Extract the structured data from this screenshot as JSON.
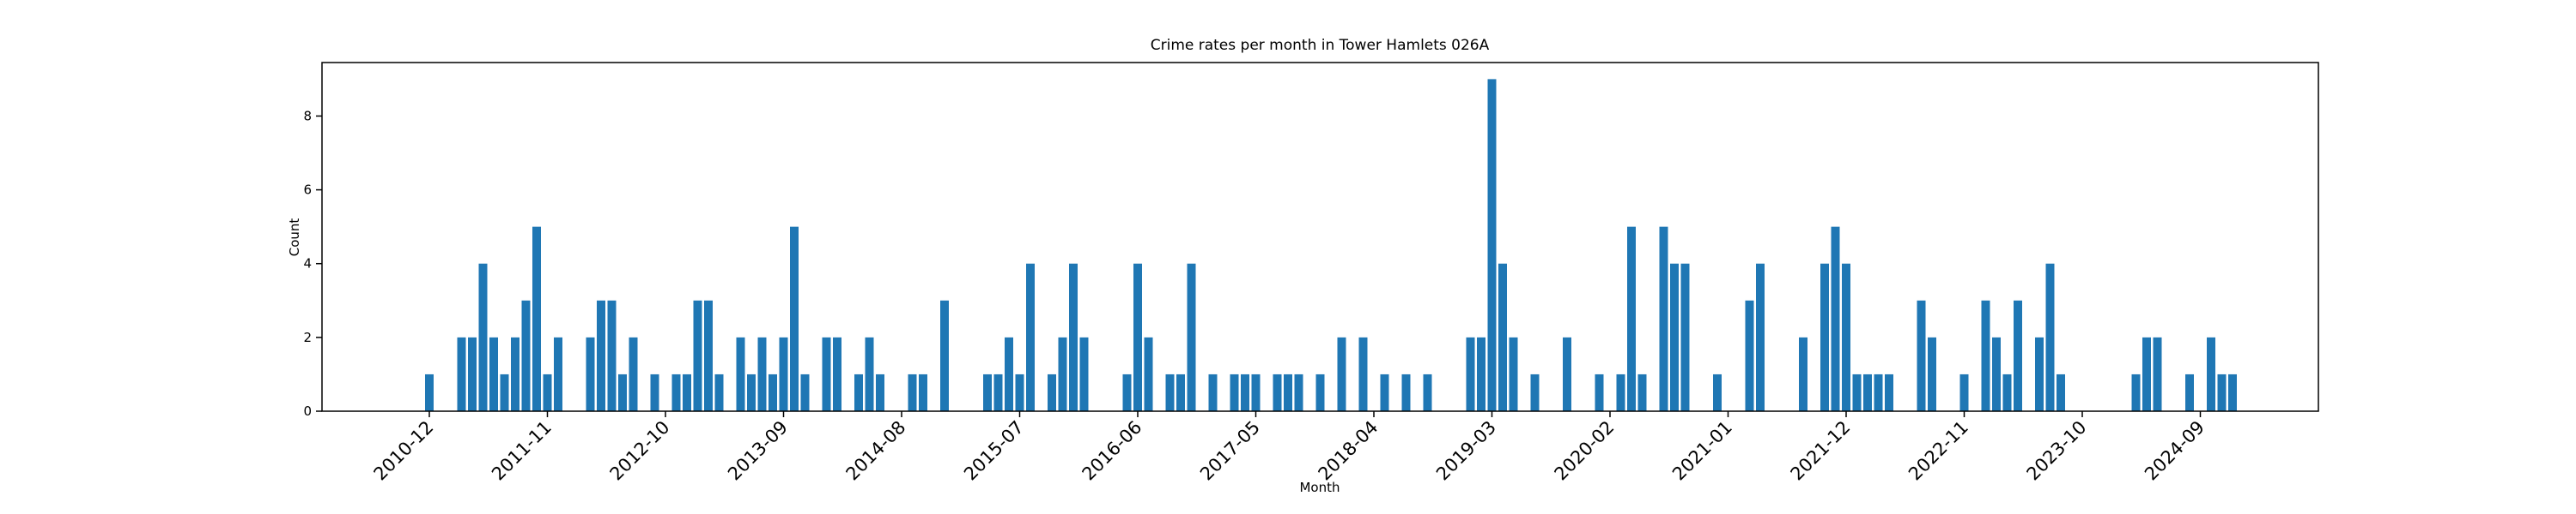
{
  "chart_data": {
    "type": "bar",
    "title": "Crime rates per month in Tower Hamlets 026A",
    "x_label": "Month",
    "y_label": "Count",
    "color": "#1f77b4",
    "x": [
      "2010-12",
      "2011-03",
      "2011-04",
      "2011-05",
      "2011-06",
      "2011-07",
      "2011-08",
      "2011-09",
      "2011-10",
      "2011-11",
      "2011-12",
      "2012-03",
      "2012-04",
      "2012-05",
      "2012-06",
      "2012-07",
      "2012-09",
      "2012-11",
      "2012-12",
      "2013-01",
      "2013-02",
      "2013-03",
      "2013-05",
      "2013-06",
      "2013-07",
      "2013-08",
      "2013-09",
      "2013-10",
      "2013-11",
      "2014-01",
      "2014-02",
      "2014-04",
      "2014-05",
      "2014-06",
      "2014-09",
      "2014-10",
      "2014-12",
      "2015-04",
      "2015-05",
      "2015-06",
      "2015-07",
      "2015-08",
      "2015-10",
      "2015-11",
      "2015-12",
      "2016-01",
      "2016-05",
      "2016-06",
      "2016-07",
      "2016-09",
      "2016-10",
      "2016-11",
      "2017-01",
      "2017-03",
      "2017-04",
      "2017-05",
      "2017-07",
      "2017-08",
      "2017-09",
      "2017-11",
      "2018-01",
      "2018-03",
      "2018-05",
      "2018-07",
      "2018-09",
      "2019-01",
      "2019-02",
      "2019-03",
      "2019-04",
      "2019-05",
      "2019-07",
      "2019-10",
      "2020-01",
      "2020-03",
      "2020-04",
      "2020-05",
      "2020-07",
      "2020-08",
      "2020-09",
      "2020-12",
      "2021-03",
      "2021-04",
      "2021-08",
      "2021-10",
      "2021-11",
      "2021-12",
      "2022-01",
      "2022-02",
      "2022-03",
      "2022-04",
      "2022-07",
      "2022-08",
      "2022-11",
      "2023-01",
      "2023-02",
      "2023-03",
      "2023-04",
      "2023-06",
      "2023-07",
      "2023-08",
      "2024-03",
      "2024-04",
      "2024-05",
      "2024-08",
      "2024-10",
      "2024-11",
      "2024-12"
    ],
    "values": [
      1,
      2,
      2,
      4,
      2,
      1,
      2,
      3,
      5,
      1,
      2,
      2,
      3,
      3,
      1,
      2,
      1,
      1,
      1,
      3,
      3,
      1,
      2,
      1,
      2,
      1,
      2,
      5,
      1,
      2,
      2,
      1,
      2,
      1,
      1,
      1,
      3,
      1,
      1,
      2,
      1,
      4,
      1,
      2,
      4,
      2,
      1,
      4,
      2,
      1,
      1,
      4,
      1,
      1,
      1,
      1,
      1,
      1,
      1,
      1,
      2,
      2,
      1,
      1,
      1,
      2,
      2,
      9,
      4,
      2,
      1,
      2,
      1,
      1,
      5,
      1,
      5,
      4,
      4,
      1,
      3,
      4,
      2,
      4,
      5,
      4,
      1,
      1,
      1,
      1,
      3,
      2,
      1,
      3,
      2,
      1,
      3,
      2,
      4,
      1,
      1,
      2,
      2,
      1,
      2,
      1,
      1
    ],
    "xlim": [
      "2010-02",
      "2025-08"
    ],
    "xticks": [
      "2010-12",
      "2011-11",
      "2012-10",
      "2013-09",
      "2014-08",
      "2015-07",
      "2016-06",
      "2017-05",
      "2018-04",
      "2019-03",
      "2020-02",
      "2021-01",
      "2021-12",
      "2022-11",
      "2023-10",
      "2024-09"
    ],
    "ylim": [
      0,
      9.45
    ],
    "yticks": [
      0,
      2,
      4,
      6,
      8
    ]
  }
}
